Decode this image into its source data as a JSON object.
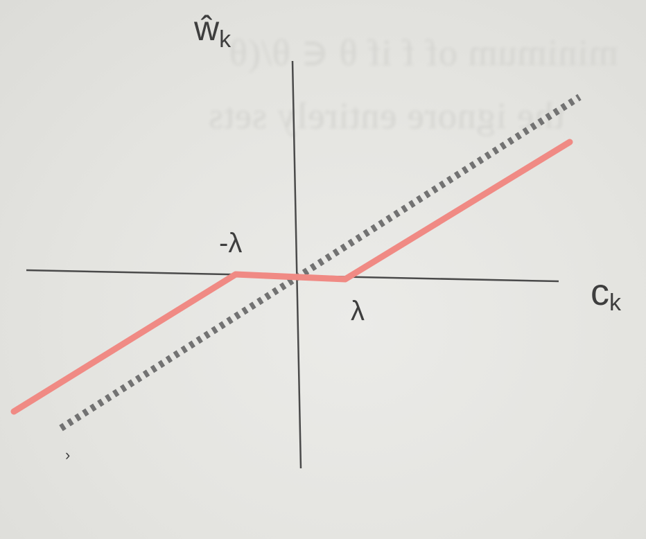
{
  "background_bleed": {
    "line1": "minimum of f if θ ∈ θ/(θ",
    "line2": "the ignore entirely sets"
  },
  "diagram": {
    "y_axis_label": "ŵ",
    "y_axis_subscript": "k",
    "x_axis_label": "c",
    "x_axis_subscript": "k",
    "neg_threshold_label": "-λ",
    "pos_threshold_label": "λ",
    "stray_mark": "›"
  },
  "chart_data": {
    "type": "line",
    "xlabel": "c_k",
    "ylabel": "ŵ_k",
    "threshold": "λ",
    "series": [
      {
        "style": "solid",
        "color": "#f08a84",
        "kind": "soft-threshold",
        "x": [
          -1.0,
          -0.22,
          0.18,
          1.0
        ],
        "y": [
          -0.5,
          0.0,
          0.0,
          0.5
        ]
      },
      {
        "style": "dotted",
        "color": "#7a7a7a",
        "kind": "identity",
        "x": [
          -0.83,
          1.0
        ],
        "y": [
          -0.52,
          0.63
        ]
      }
    ]
  }
}
